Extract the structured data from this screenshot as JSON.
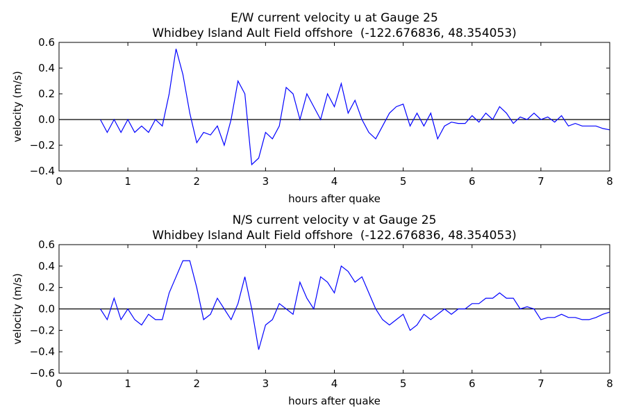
{
  "chart_data": [
    {
      "type": "line",
      "title": "E/W current velocity u at Gauge 25",
      "subtitle": "Whidbey Island Ault Field offshore  (-122.676836, 48.354053)",
      "x_label": "hours after quake",
      "y_label": "velocity (m/s)",
      "color": "#0000ff",
      "hline": 0,
      "x": [
        0.6,
        0.7,
        0.8,
        0.9,
        1.0,
        1.1,
        1.2,
        1.3,
        1.4,
        1.5,
        1.6,
        1.7,
        1.8,
        1.9,
        2.0,
        2.1,
        2.2,
        2.3,
        2.4,
        2.5,
        2.6,
        2.7,
        2.8,
        2.9,
        3.0,
        3.1,
        3.2,
        3.3,
        3.4,
        3.5,
        3.6,
        3.7,
        3.8,
        3.9,
        4.0,
        4.1,
        4.2,
        4.3,
        4.4,
        4.5,
        4.6,
        4.7,
        4.8,
        4.9,
        5.0,
        5.1,
        5.2,
        5.3,
        5.4,
        5.5,
        5.6,
        5.7,
        5.8,
        5.9,
        6.0,
        6.1,
        6.2,
        6.3,
        6.4,
        6.5,
        6.6,
        6.7,
        6.8,
        6.9,
        7.0,
        7.1,
        7.2,
        7.3,
        7.4,
        7.5,
        7.6,
        7.7,
        7.8,
        7.9,
        8.0
      ],
      "values": [
        0.0,
        -0.1,
        0.0,
        -0.1,
        0.0,
        -0.1,
        -0.05,
        -0.1,
        0.0,
        -0.05,
        0.2,
        0.55,
        0.35,
        0.05,
        -0.18,
        -0.1,
        -0.12,
        -0.05,
        -0.2,
        0.0,
        0.3,
        0.2,
        -0.35,
        -0.3,
        -0.1,
        -0.15,
        -0.05,
        0.25,
        0.2,
        0.0,
        0.2,
        0.1,
        0.0,
        0.2,
        0.1,
        0.28,
        0.05,
        0.15,
        0.0,
        -0.1,
        -0.15,
        -0.05,
        0.05,
        0.1,
        0.12,
        -0.05,
        0.05,
        -0.05,
        0.05,
        -0.15,
        -0.05,
        -0.02,
        -0.03,
        -0.03,
        0.03,
        -0.02,
        0.05,
        0.0,
        0.1,
        0.05,
        -0.03,
        0.02,
        0.0,
        0.05,
        0.0,
        0.02,
        -0.02,
        0.03,
        -0.05,
        -0.03,
        -0.05,
        -0.05,
        -0.05,
        -0.07,
        -0.08
      ],
      "xlim": [
        0,
        8
      ],
      "xticks": [
        0,
        1,
        2,
        3,
        4,
        5,
        6,
        7,
        8
      ],
      "ylim": [
        -0.4,
        0.6
      ],
      "yticks": [
        {
          "value": -0.4,
          "label": "−0.4"
        },
        {
          "value": -0.2,
          "label": "−0.2"
        },
        {
          "value": 0,
          "label": "0.0"
        },
        0.2,
        0.4,
        0.6
      ]
    },
    {
      "type": "line",
      "title": "N/S current velocity v at Gauge 25",
      "subtitle": "Whidbey Island Ault Field offshore  (-122.676836, 48.354053)",
      "x_label": "hours after quake",
      "y_label": "velocity (m/s)",
      "color": "#0000ff",
      "hline": 0,
      "x": [
        0.6,
        0.7,
        0.8,
        0.9,
        1.0,
        1.1,
        1.2,
        1.3,
        1.4,
        1.5,
        1.6,
        1.7,
        1.8,
        1.9,
        2.0,
        2.1,
        2.2,
        2.3,
        2.4,
        2.5,
        2.6,
        2.7,
        2.8,
        2.9,
        3.0,
        3.1,
        3.2,
        3.3,
        3.4,
        3.5,
        3.6,
        3.7,
        3.8,
        3.9,
        4.0,
        4.1,
        4.2,
        4.3,
        4.4,
        4.5,
        4.6,
        4.7,
        4.8,
        4.9,
        5.0,
        5.1,
        5.2,
        5.3,
        5.4,
        5.5,
        5.6,
        5.7,
        5.8,
        5.9,
        6.0,
        6.1,
        6.2,
        6.3,
        6.4,
        6.5,
        6.6,
        6.7,
        6.8,
        6.9,
        7.0,
        7.1,
        7.2,
        7.3,
        7.4,
        7.5,
        7.6,
        7.7,
        7.8,
        7.9,
        8.0
      ],
      "values": [
        0.0,
        -0.1,
        0.1,
        -0.1,
        0.0,
        -0.1,
        -0.15,
        -0.05,
        -0.1,
        -0.1,
        0.15,
        0.3,
        0.45,
        0.45,
        0.2,
        -0.1,
        -0.05,
        0.1,
        0.0,
        -0.1,
        0.05,
        0.3,
        0.0,
        -0.38,
        -0.15,
        -0.1,
        0.05,
        0.0,
        -0.05,
        0.25,
        0.1,
        0.0,
        0.3,
        0.25,
        0.15,
        0.4,
        0.35,
        0.25,
        0.3,
        0.15,
        0.0,
        -0.1,
        -0.15,
        -0.1,
        -0.05,
        -0.2,
        -0.15,
        -0.05,
        -0.1,
        -0.05,
        0.0,
        -0.05,
        0.0,
        0.0,
        0.05,
        0.05,
        0.1,
        0.1,
        0.15,
        0.1,
        0.1,
        0.0,
        0.02,
        0.0,
        -0.1,
        -0.08,
        -0.08,
        -0.05,
        -0.08,
        -0.08,
        -0.1,
        -0.1,
        -0.08,
        -0.05,
        -0.03
      ],
      "xlim": [
        0,
        8
      ],
      "xticks": [
        0,
        1,
        2,
        3,
        4,
        5,
        6,
        7,
        8
      ],
      "ylim": [
        -0.6,
        0.6
      ],
      "yticks": [
        {
          "value": -0.6,
          "label": "−0.6"
        },
        {
          "value": -0.4,
          "label": "−0.4"
        },
        {
          "value": -0.2,
          "label": "−0.2"
        },
        {
          "value": 0,
          "label": "0.0"
        },
        0.2,
        0.4,
        0.6
      ]
    }
  ]
}
